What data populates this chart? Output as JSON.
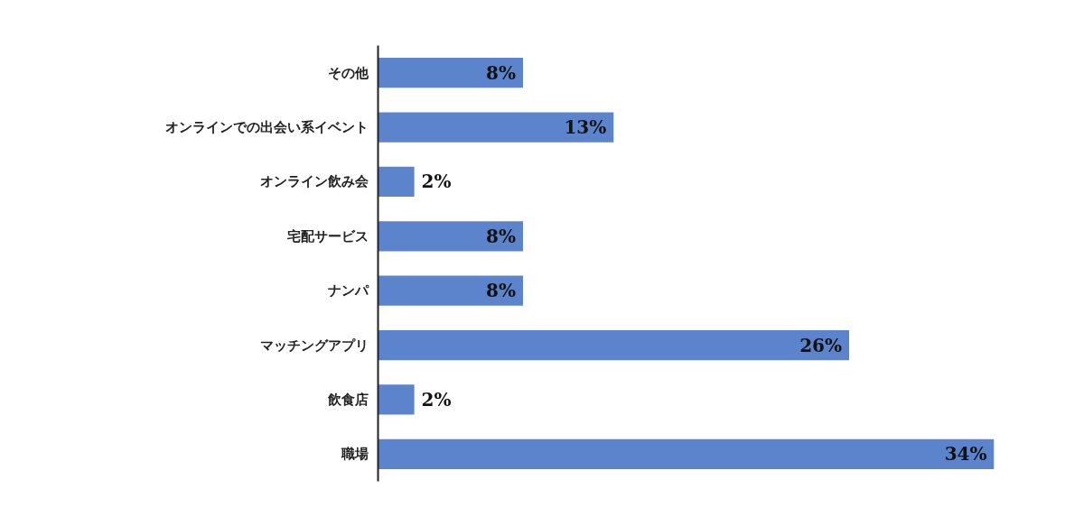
{
  "chart_data": {
    "type": "bar",
    "orientation": "horizontal",
    "categories": [
      "その他",
      "オンラインでの出会い系イベント",
      "オンライン飲み会",
      "宅配サービス",
      "ナンパ",
      "マッチングアプリ",
      "飲食店",
      "職場"
    ],
    "values": [
      8,
      13,
      2,
      8,
      8,
      26,
      2,
      34
    ],
    "value_labels": [
      "8%",
      "13%",
      "2%",
      "8%",
      "8%",
      "26%",
      "2%",
      "34%"
    ],
    "color": "#5b84cc",
    "tick_labels": "y",
    "grid": false
  }
}
